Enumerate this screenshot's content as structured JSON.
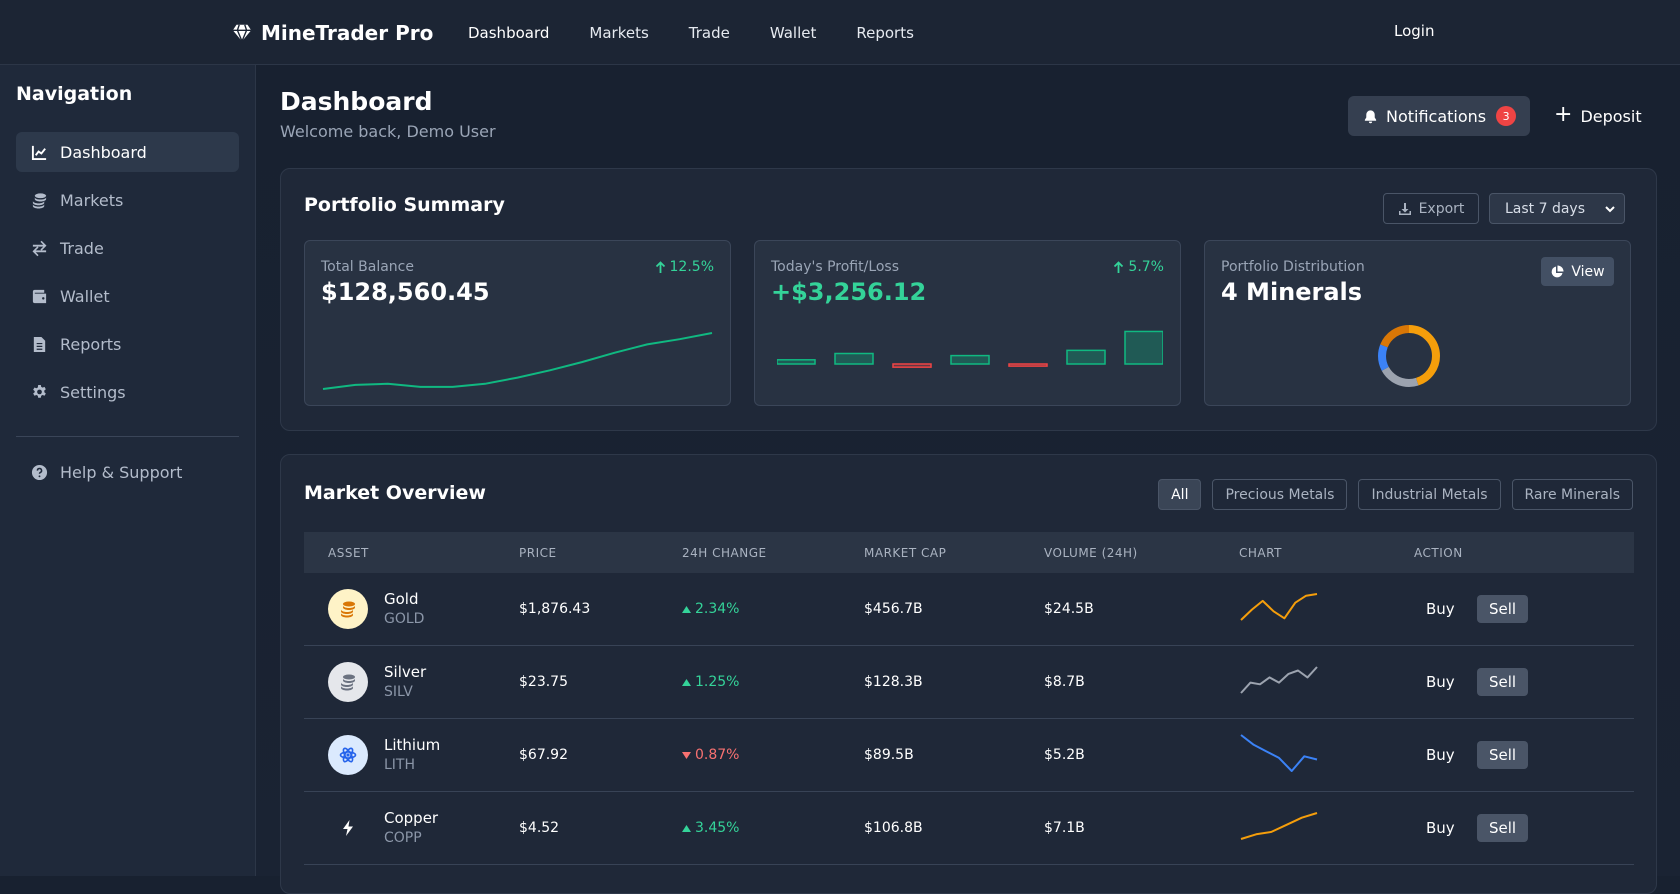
{
  "brand": {
    "name": "MineTrader Pro",
    "icon": "gem-icon"
  },
  "topnav": {
    "links": [
      {
        "label": "Dashboard",
        "active": true
      },
      {
        "label": "Markets"
      },
      {
        "label": "Trade"
      },
      {
        "label": "Wallet"
      },
      {
        "label": "Reports"
      }
    ],
    "login": "Login"
  },
  "sidebar": {
    "title": "Navigation",
    "items": [
      {
        "label": "Dashboard",
        "icon": "chart-line-icon",
        "active": true
      },
      {
        "label": "Markets",
        "icon": "coins-icon"
      },
      {
        "label": "Trade",
        "icon": "exchange-icon"
      },
      {
        "label": "Wallet",
        "icon": "wallet-icon"
      },
      {
        "label": "Reports",
        "icon": "file-icon"
      },
      {
        "label": "Settings",
        "icon": "gear-icon"
      }
    ],
    "help": {
      "label": "Help & Support",
      "icon": "question-circle-icon"
    }
  },
  "header": {
    "title": "Dashboard",
    "subtitle": "Welcome back, Demo User",
    "notifications": {
      "label": "Notifications",
      "count": "3"
    },
    "deposit": "Deposit"
  },
  "summary": {
    "title": "Portfolio Summary",
    "export": "Export",
    "range": "Last 7 days",
    "cards": {
      "balance": {
        "label": "Total Balance",
        "value": "$128,560.45",
        "change": "12.5%"
      },
      "pnl": {
        "label": "Today's Profit/Loss",
        "value": "+$3,256.12",
        "change": "5.7%"
      },
      "distribution": {
        "label": "Portfolio Distribution",
        "value": "4 Minerals",
        "view": "View"
      }
    },
    "balance_trend": [
      10,
      14,
      15,
      12,
      12,
      15,
      21,
      28,
      36,
      45,
      53,
      58,
      64
    ],
    "pnl_bars": [
      4,
      10,
      -3,
      8,
      -2,
      13,
      31
    ],
    "distribution_segments": [
      {
        "name": "segment-1",
        "value": 45,
        "color": "#f59e0b"
      },
      {
        "name": "segment-2",
        "value": 22,
        "color": "#9ca3af"
      },
      {
        "name": "segment-3",
        "value": 14,
        "color": "#3b82f6"
      },
      {
        "name": "segment-4",
        "value": 19,
        "color": "#d97706"
      }
    ]
  },
  "market": {
    "title": "Market Overview",
    "filters": [
      "All",
      "Precious Metals",
      "Industrial Metals",
      "Rare Minerals"
    ],
    "columns": [
      "ASSET",
      "PRICE",
      "24H CHANGE",
      "MARKET CAP",
      "VOLUME (24H)",
      "CHART",
      "ACTION"
    ],
    "rows": [
      {
        "name": "Gold",
        "symbol": "GOLD",
        "price": "$1,876.43",
        "change": "2.34%",
        "direction": "up",
        "cap": "$456.7B",
        "volume": "$24.5B",
        "icon": "coins-icon",
        "icon_color": "#d97706",
        "icon_bg": "#fef3c7",
        "spark_color": "#f59e0b",
        "spark": [
          3,
          9,
          14,
          8,
          4,
          13,
          17,
          18
        ]
      },
      {
        "name": "Silver",
        "symbol": "SILV",
        "price": "$23.75",
        "change": "1.25%",
        "direction": "up",
        "cap": "$128.3B",
        "volume": "$8.7B",
        "icon": "coins-icon",
        "icon_color": "#6b7280",
        "icon_bg": "#e5e7eb",
        "spark_color": "#9ca3af",
        "spark": [
          4,
          10,
          9,
          13,
          10,
          15,
          17,
          13,
          19
        ]
      },
      {
        "name": "Lithium",
        "symbol": "LITH",
        "price": "$67.92",
        "change": "0.87%",
        "direction": "down",
        "cap": "$89.5B",
        "volume": "$5.2B",
        "icon": "atom-icon",
        "icon_color": "#2563eb",
        "icon_bg": "#dbeafe",
        "spark_color": "#3b82f6",
        "spark": [
          26,
          20,
          16,
          12,
          4,
          13,
          11
        ]
      },
      {
        "name": "Copper",
        "symbol": "COPP",
        "price": "$4.52",
        "change": "3.45%",
        "direction": "up",
        "cap": "$106.8B",
        "volume": "$7.1B",
        "icon": "bolt-icon",
        "icon_color": "#ffffff",
        "icon_bg": "transparent",
        "spark_color": "#f59e0b",
        "spark": [
          4,
          6,
          7,
          10,
          13,
          15
        ]
      }
    ],
    "buy": "Buy",
    "sell": "Sell"
  }
}
